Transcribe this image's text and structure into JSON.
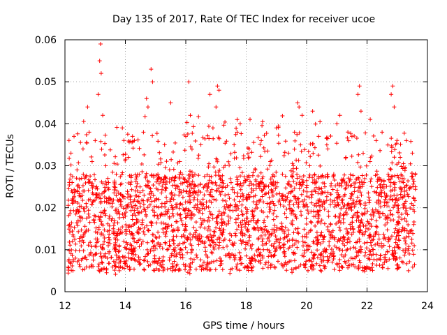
{
  "chart_data": {
    "type": "scatter",
    "title": "Day 135 of 2017, Rate Of TEC Index for receiver ucoe",
    "xlabel": "GPS time / hours",
    "ylabel": "ROTI / TECUs",
    "xlim": [
      12,
      24
    ],
    "ylim": [
      0,
      0.06
    ],
    "x_ticks": [
      "12",
      "14",
      "16",
      "18",
      "20",
      "22",
      "24"
    ],
    "y_ticks": [
      "0",
      "0.01",
      "0.02",
      "0.03",
      "0.04",
      "0.05",
      "0.06"
    ],
    "grid": true,
    "legend": "none",
    "marker": "plus",
    "color": "#ff0000",
    "x_data_range": [
      12.1,
      23.6
    ],
    "points": [
      [
        12.15,
        0.016
      ],
      [
        12.2,
        0.033
      ],
      [
        12.22,
        0.024
      ],
      [
        12.25,
        0.012
      ],
      [
        12.3,
        0.037
      ],
      [
        12.35,
        0.008
      ],
      [
        12.4,
        0.029
      ],
      [
        12.45,
        0.019
      ],
      [
        12.5,
        0.006
      ],
      [
        12.55,
        0.027
      ],
      [
        12.6,
        0.034
      ],
      [
        12.65,
        0.014
      ],
      [
        12.7,
        0.021
      ],
      [
        12.75,
        0.044
      ],
      [
        12.8,
        0.038
      ],
      [
        12.85,
        0.009
      ],
      [
        12.9,
        0.031
      ],
      [
        12.95,
        0.017
      ],
      [
        13.0,
        0.036
      ],
      [
        13.05,
        0.025
      ],
      [
        13.1,
        0.047
      ],
      [
        13.15,
        0.055
      ],
      [
        13.18,
        0.059
      ],
      [
        13.2,
        0.052
      ],
      [
        13.25,
        0.042
      ],
      [
        13.3,
        0.012
      ],
      [
        13.35,
        0.03
      ],
      [
        13.4,
        0.008
      ],
      [
        13.5,
        0.022
      ],
      [
        13.6,
        0.015
      ],
      [
        13.7,
        0.028
      ],
      [
        13.8,
        0.005
      ],
      [
        13.9,
        0.039
      ],
      [
        14.0,
        0.018
      ],
      [
        14.1,
        0.032
      ],
      [
        14.2,
        0.011
      ],
      [
        14.3,
        0.036
      ],
      [
        14.4,
        0.024
      ],
      [
        14.5,
        0.015
      ],
      [
        14.6,
        0.038
      ],
      [
        14.7,
        0.046
      ],
      [
        14.75,
        0.044
      ],
      [
        14.85,
        0.053
      ],
      [
        14.9,
        0.05
      ],
      [
        15.0,
        0.013
      ],
      [
        15.1,
        0.027
      ],
      [
        15.2,
        0.006
      ],
      [
        15.3,
        0.035
      ],
      [
        15.4,
        0.019
      ],
      [
        15.5,
        0.045
      ],
      [
        15.6,
        0.022
      ],
      [
        15.7,
        0.009
      ],
      [
        15.8,
        0.031
      ],
      [
        15.9,
        0.016
      ],
      [
        16.0,
        0.037
      ],
      [
        16.1,
        0.05
      ],
      [
        16.15,
        0.042
      ],
      [
        16.2,
        0.011
      ],
      [
        16.3,
        0.028
      ],
      [
        16.4,
        0.02
      ],
      [
        16.5,
        0.035
      ],
      [
        16.6,
        0.007
      ],
      [
        16.7,
        0.024
      ],
      [
        16.8,
        0.047
      ],
      [
        16.9,
        0.039
      ],
      [
        17.0,
        0.044
      ],
      [
        17.05,
        0.049
      ],
      [
        17.1,
        0.048
      ],
      [
        17.2,
        0.014
      ],
      [
        17.3,
        0.03
      ],
      [
        17.4,
        0.018
      ],
      [
        17.5,
        0.026
      ],
      [
        17.6,
        0.035
      ],
      [
        17.7,
        0.041
      ],
      [
        17.8,
        0.04
      ],
      [
        17.9,
        0.012
      ],
      [
        18.0,
        0.022
      ],
      [
        18.1,
        0.034
      ],
      [
        18.2,
        0.008
      ],
      [
        18.3,
        0.029
      ],
      [
        18.4,
        0.017
      ],
      [
        18.5,
        0.036
      ],
      [
        18.6,
        0.025
      ],
      [
        18.7,
        0.01
      ],
      [
        18.8,
        0.031
      ],
      [
        18.9,
        0.021
      ],
      [
        19.0,
        0.039
      ],
      [
        19.1,
        0.015
      ],
      [
        19.2,
        0.028
      ],
      [
        19.3,
        0.007
      ],
      [
        19.4,
        0.033
      ],
      [
        19.5,
        0.019
      ],
      [
        19.6,
        0.038
      ],
      [
        19.7,
        0.045
      ],
      [
        19.75,
        0.044
      ],
      [
        19.85,
        0.042
      ],
      [
        19.9,
        0.024
      ],
      [
        20.0,
        0.013
      ],
      [
        20.1,
        0.03
      ],
      [
        20.2,
        0.043
      ],
      [
        20.3,
        0.018
      ],
      [
        20.4,
        0.037
      ],
      [
        20.5,
        0.009
      ],
      [
        20.6,
        0.025
      ],
      [
        20.7,
        0.034
      ],
      [
        20.8,
        0.016
      ],
      [
        20.9,
        0.028
      ],
      [
        21.0,
        0.04
      ],
      [
        21.1,
        0.042
      ],
      [
        21.2,
        0.012
      ],
      [
        21.3,
        0.032
      ],
      [
        21.4,
        0.021
      ],
      [
        21.5,
        0.037
      ],
      [
        21.6,
        0.008
      ],
      [
        21.7,
        0.047
      ],
      [
        21.75,
        0.049
      ],
      [
        21.8,
        0.043
      ],
      [
        21.9,
        0.026
      ],
      [
        22.0,
        0.015
      ],
      [
        22.1,
        0.031
      ],
      [
        22.2,
        0.019
      ],
      [
        22.3,
        0.036
      ],
      [
        22.4,
        0.011
      ],
      [
        22.5,
        0.038
      ],
      [
        22.6,
        0.022
      ],
      [
        22.7,
        0.028
      ],
      [
        22.8,
        0.047
      ],
      [
        22.85,
        0.049
      ],
      [
        22.9,
        0.044
      ],
      [
        23.0,
        0.014
      ],
      [
        23.1,
        0.032
      ],
      [
        23.2,
        0.02
      ],
      [
        23.3,
        0.036
      ],
      [
        23.4,
        0.009
      ],
      [
        23.5,
        0.033
      ],
      [
        23.55,
        0.016
      ],
      [
        23.6,
        0.025
      ]
    ]
  }
}
